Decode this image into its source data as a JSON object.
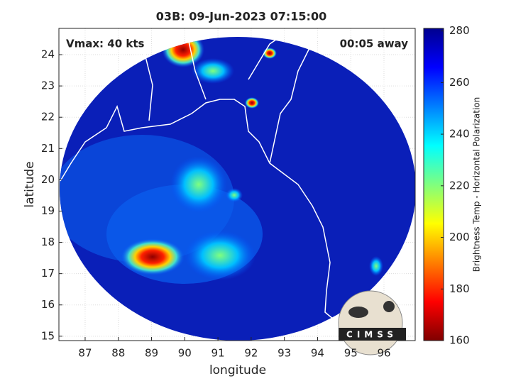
{
  "chart_data": {
    "type": "image_map",
    "title": "03B: 09-Jun-2023 07:15:00",
    "x_label": "longitude",
    "y_label": "latitude",
    "annotations": [
      "Vmax: 40 kts",
      "00:05 away"
    ],
    "xlim": [
      86.21,
      96.94
    ],
    "ylim": [
      14.86,
      24.84
    ],
    "xticks": [
      87,
      88,
      89,
      90,
      91,
      92,
      93,
      94,
      95,
      96
    ],
    "yticks": [
      15,
      16,
      17,
      18,
      19,
      20,
      21,
      22,
      23,
      24
    ],
    "grid": true,
    "colorbar": {
      "label": "Brightness Temp - Horizontal Polarization",
      "lim": [
        160,
        281
      ],
      "ticks": [
        160,
        180,
        200,
        220,
        240,
        260,
        280
      ],
      "colors": [
        "#7f0000",
        "#ff0000",
        "#ff7f00",
        "#ffff00",
        "#7fff7f",
        "#00ffff",
        "#007fff",
        "#0000ff",
        "#00008f"
      ]
    },
    "logo_text": "CIMSS"
  }
}
